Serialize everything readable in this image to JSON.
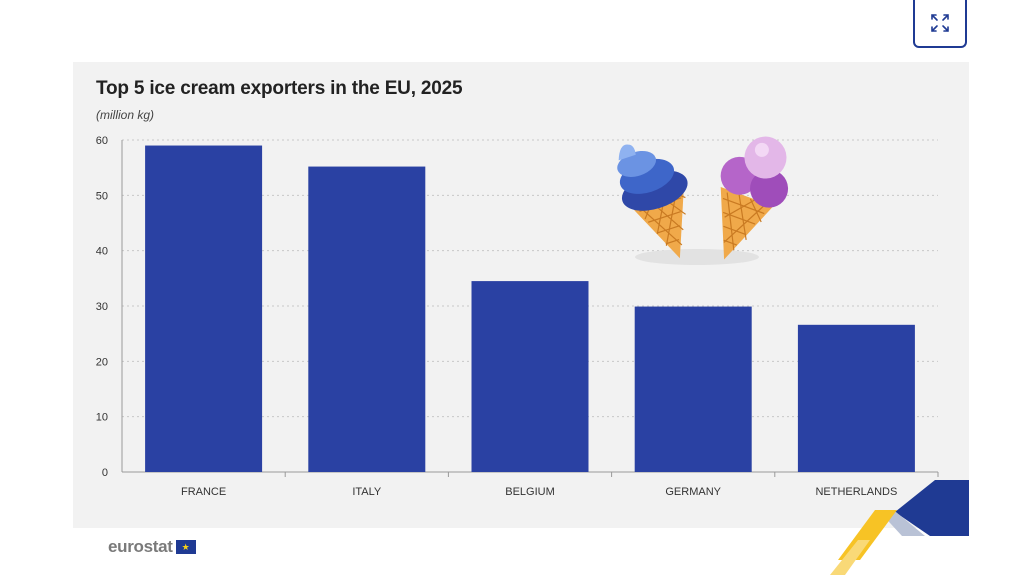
{
  "header": {
    "expand_icon": "expand-arrows-icon"
  },
  "chart_data": {
    "type": "bar",
    "title": "Top 5 ice cream exporters in the EU, 2025",
    "subtitle": "(million kg)",
    "categories": [
      "FRANCE",
      "ITALY",
      "BELGIUM",
      "GERMANY",
      "NETHERLANDS"
    ],
    "values": [
      59,
      55.2,
      34.5,
      29.9,
      26.6
    ],
    "ylim": [
      0,
      60
    ],
    "yticks": [
      0,
      10,
      20,
      30,
      40,
      50,
      60
    ],
    "grid": true,
    "bar_color": "#2a41a3"
  },
  "footer": {
    "logo_text": "eurostat"
  },
  "decorations": {
    "illustration": "ice-cream-cones-icon",
    "corner": "eu-stripes-decoration"
  },
  "colors": {
    "accent": "#1f3a93",
    "yellow": "#f7c325"
  }
}
